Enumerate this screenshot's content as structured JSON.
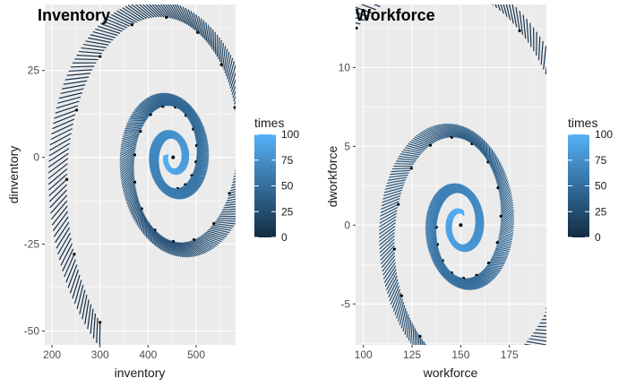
{
  "chart_data": [
    {
      "type": "vector-field-spiral",
      "title": "Inventory",
      "xlabel": "inventory",
      "ylabel": "dinventory",
      "xlim": [
        185,
        582
      ],
      "ylim": [
        -54,
        44
      ],
      "xticks": [
        200,
        300,
        400,
        500
      ],
      "yticks": [
        -50,
        -25,
        0,
        25
      ],
      "x_tick_labels": [
        "200",
        "300",
        "400",
        "500"
      ],
      "y_tick_labels": [
        "-50",
        "-25",
        "0",
        "25"
      ],
      "grid": true,
      "start_point": [
        300,
        -50
      ],
      "equilibrium": [
        452,
        0
      ],
      "legend": {
        "title": "times",
        "range": [
          0,
          100
        ],
        "ticks": [
          0,
          25,
          50,
          75,
          100
        ],
        "tick_labels": [
          "0",
          "25",
          "50",
          "75",
          "100"
        ],
        "low_color": "#132B43",
        "high_color": "#56B1F7"
      }
    },
    {
      "type": "vector-field-spiral",
      "title": "Workforce",
      "xlabel": "workforce",
      "ylabel": "dworkforce",
      "xlim": [
        96,
        194
      ],
      "ylim": [
        -7.6,
        14
      ],
      "xticks": [
        100,
        125,
        150,
        175
      ],
      "yticks": [
        -5,
        0,
        5,
        10
      ],
      "x_tick_labels": [
        "100",
        "125",
        "150",
        "175"
      ],
      "y_tick_labels": [
        "-5",
        "0",
        "5",
        "10"
      ],
      "grid": true,
      "start_point": [
        99,
        12.5
      ],
      "equilibrium": [
        150,
        0
      ],
      "legend": {
        "title": "times",
        "range": [
          0,
          100
        ],
        "ticks": [
          0,
          25,
          50,
          75,
          100
        ],
        "tick_labels": [
          "0",
          "25",
          "50",
          "75",
          "100"
        ],
        "low_color": "#132B43",
        "high_color": "#56B1F7"
      }
    }
  ]
}
